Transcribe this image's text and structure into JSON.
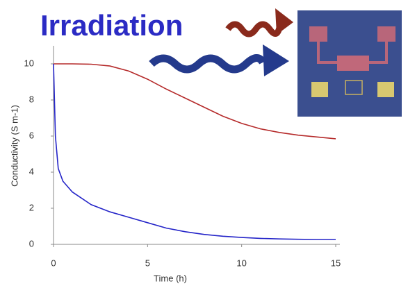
{
  "chart_data": {
    "type": "line",
    "title": "Irradiation",
    "x_label": "Time (h)",
    "y_label": "Conductivity (S m-1)",
    "xlim": [
      0,
      15
    ],
    "xticks": [
      0,
      5,
      10,
      15
    ],
    "ylim": [
      0,
      11
    ],
    "yticks": [
      0,
      2,
      4,
      6,
      8,
      10
    ],
    "series": [
      {
        "color": "#b52a2a",
        "x": [
          0,
          1,
          2,
          3,
          4,
          5,
          6,
          7,
          8,
          9,
          10,
          11,
          12,
          13,
          14,
          15
        ],
        "values": [
          10,
          10,
          9.98,
          9.88,
          9.6,
          9.15,
          8.6,
          8.1,
          7.6,
          7.1,
          6.7,
          6.4,
          6.2,
          6.05,
          5.95,
          5.85
        ]
      },
      {
        "color": "#2424c8",
        "x": [
          0,
          0.1,
          0.25,
          0.5,
          1,
          2,
          3,
          4,
          5,
          6,
          7,
          8,
          9,
          10,
          11,
          12,
          13,
          14,
          15
        ],
        "values": [
          10,
          6,
          4.2,
          3.5,
          2.9,
          2.2,
          1.8,
          1.5,
          1.2,
          0.9,
          0.7,
          0.55,
          0.45,
          0.38,
          0.33,
          0.3,
          0.28,
          0.27,
          0.27
        ]
      }
    ]
  }
}
